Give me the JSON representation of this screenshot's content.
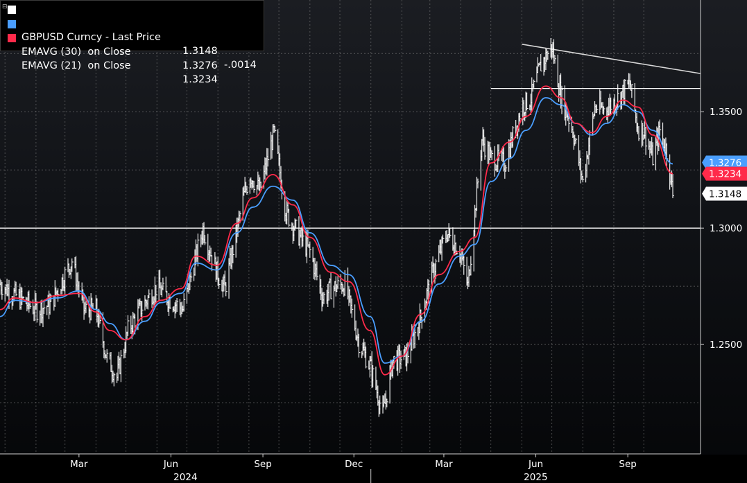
{
  "legend": {
    "rows": [
      {
        "label": "GBPUSD Curncy - Last Price",
        "value": "1.3148",
        "change": "-.0014",
        "color": "#ffffff"
      },
      {
        "label": "EMAVG (30)  on Close",
        "value": "1.3276",
        "change": "",
        "color": "#4a9eff"
      },
      {
        "label": "EMAVG (21)  on Close",
        "value": "1.3234",
        "change": "",
        "color": "#ff2a4a"
      }
    ]
  },
  "chart_data": {
    "type": "line",
    "y_ticks": [
      "1.2500",
      "1.3000",
      "1.3500"
    ],
    "ylim": [
      1.203,
      1.398
    ],
    "x_ticks": [
      "Mar",
      "Jun",
      "Sep",
      "Dec",
      "Mar",
      "Jun",
      "Sep"
    ],
    "x_tick_months": [
      "2024-03",
      "2024-06",
      "2024-09",
      "2024-12",
      "2025-03",
      "2025-06",
      "2025-09"
    ],
    "years": [
      "2024",
      "2025"
    ],
    "x_range": [
      "2023-12-27",
      "2025-10-30"
    ],
    "grid": true,
    "legend_position": "top-left",
    "series": [
      {
        "name": "GBPUSD Curncy - Last Price",
        "style": "high-low bars",
        "color": "#ffffff",
        "x": [
          "2023-12-27",
          "2024-01-15",
          "2024-02-01",
          "2024-02-15",
          "2024-03-08",
          "2024-03-20",
          "2024-04-01",
          "2024-04-12",
          "2024-04-22",
          "2024-05-03",
          "2024-05-15",
          "2024-06-01",
          "2024-06-12",
          "2024-06-27",
          "2024-07-17",
          "2024-07-31",
          "2024-08-08",
          "2024-08-27",
          "2024-09-02",
          "2024-09-12",
          "2024-09-26",
          "2024-10-08",
          "2024-10-22",
          "2024-11-01",
          "2024-11-14",
          "2024-11-22",
          "2024-12-06",
          "2024-12-20",
          "2025-01-01",
          "2025-01-13",
          "2025-01-23",
          "2025-02-06",
          "2025-02-20",
          "2025-03-04",
          "2025-03-18",
          "2025-03-31",
          "2025-04-08",
          "2025-04-22",
          "2025-05-01",
          "2025-05-15",
          "2025-06-01",
          "2025-06-10",
          "2025-06-20",
          "2025-07-01",
          "2025-07-10",
          "2025-07-22",
          "2025-08-01",
          "2025-08-13",
          "2025-08-22",
          "2025-09-01",
          "2025-09-17",
          "2025-09-25",
          "2025-10-01",
          "2025-10-10",
          "2025-10-17",
          "2025-10-24",
          "2025-10-30"
        ],
        "values": [
          1.276,
          1.27,
          1.265,
          1.267,
          1.286,
          1.265,
          1.265,
          1.244,
          1.236,
          1.256,
          1.265,
          1.275,
          1.27,
          1.265,
          1.3,
          1.281,
          1.274,
          1.314,
          1.323,
          1.316,
          1.341,
          1.307,
          1.296,
          1.29,
          1.27,
          1.274,
          1.276,
          1.251,
          1.24,
          1.22,
          1.243,
          1.245,
          1.262,
          1.281,
          1.298,
          1.29,
          1.275,
          1.338,
          1.33,
          1.328,
          1.352,
          1.356,
          1.37,
          1.378,
          1.357,
          1.342,
          1.32,
          1.352,
          1.351,
          1.354,
          1.362,
          1.343,
          1.342,
          1.33,
          1.342,
          1.333,
          1.3148
        ]
      },
      {
        "name": "EMAVG (30)  on Close",
        "color": "#4a9eff",
        "x": [
          "2023-12-27",
          "2024-01-10",
          "2024-02-01",
          "2024-02-22",
          "2024-03-15",
          "2024-04-01",
          "2024-04-15",
          "2024-05-01",
          "2024-05-20",
          "2024-06-05",
          "2024-06-25",
          "2024-07-10",
          "2024-07-31",
          "2024-08-20",
          "2024-09-05",
          "2024-09-25",
          "2024-10-15",
          "2024-11-01",
          "2024-11-22",
          "2024-12-10",
          "2024-12-31",
          "2025-01-15",
          "2025-02-01",
          "2025-02-20",
          "2025-03-10",
          "2025-03-31",
          "2025-04-15",
          "2025-05-01",
          "2025-05-20",
          "2025-06-05",
          "2025-06-25",
          "2025-07-10",
          "2025-07-25",
          "2025-08-10",
          "2025-08-25",
          "2025-09-10",
          "2025-09-25",
          "2025-10-10",
          "2025-10-30"
        ],
        "values": [
          1.262,
          1.269,
          1.268,
          1.27,
          1.273,
          1.265,
          1.259,
          1.252,
          1.26,
          1.268,
          1.272,
          1.285,
          1.282,
          1.298,
          1.309,
          1.318,
          1.312,
          1.298,
          1.284,
          1.28,
          1.262,
          1.242,
          1.245,
          1.26,
          1.276,
          1.288,
          1.293,
          1.32,
          1.33,
          1.342,
          1.356,
          1.353,
          1.345,
          1.34,
          1.345,
          1.353,
          1.35,
          1.342,
          1.3276
        ]
      },
      {
        "name": "EMAVG (21)  on Close",
        "color": "#ff2a4a",
        "x": [
          "2023-12-27",
          "2024-01-10",
          "2024-02-01",
          "2024-02-22",
          "2024-03-15",
          "2024-04-01",
          "2024-04-15",
          "2024-05-01",
          "2024-05-20",
          "2024-06-05",
          "2024-06-25",
          "2024-07-10",
          "2024-07-31",
          "2024-08-20",
          "2024-09-05",
          "2024-09-25",
          "2024-10-15",
          "2024-11-01",
          "2024-11-22",
          "2024-12-10",
          "2024-12-31",
          "2025-01-15",
          "2025-02-01",
          "2025-02-20",
          "2025-03-10",
          "2025-03-31",
          "2025-04-15",
          "2025-05-01",
          "2025-05-20",
          "2025-06-05",
          "2025-06-25",
          "2025-07-10",
          "2025-07-25",
          "2025-08-10",
          "2025-08-25",
          "2025-09-10",
          "2025-09-25",
          "2025-10-10",
          "2025-10-30"
        ],
        "values": [
          1.265,
          1.27,
          1.268,
          1.271,
          1.272,
          1.264,
          1.256,
          1.252,
          1.262,
          1.269,
          1.274,
          1.288,
          1.284,
          1.302,
          1.313,
          1.323,
          1.31,
          1.296,
          1.281,
          1.277,
          1.256,
          1.237,
          1.245,
          1.263,
          1.28,
          1.29,
          1.296,
          1.328,
          1.337,
          1.348,
          1.361,
          1.356,
          1.345,
          1.341,
          1.348,
          1.355,
          1.352,
          1.34,
          1.3234
        ]
      }
    ],
    "reference_lines": [
      {
        "type": "horizontal",
        "y": 1.3
      },
      {
        "type": "horizontal",
        "y": 1.36,
        "x_start": "2025-05-01",
        "x_end": "2025-10-30"
      },
      {
        "type": "trend",
        "x": [
          "2025-06-01",
          "2025-10-30"
        ],
        "y": [
          1.379,
          1.367
        ]
      }
    ],
    "price_tags": [
      {
        "value": "1.3276",
        "bg": "#4a9eff",
        "fg": "#ffffff"
      },
      {
        "value": "1.3234",
        "bg": "#ff2a4a",
        "fg": "#ffffff"
      },
      {
        "value": "1.3148",
        "bg": "#ffffff",
        "fg": "#000000"
      }
    ]
  }
}
